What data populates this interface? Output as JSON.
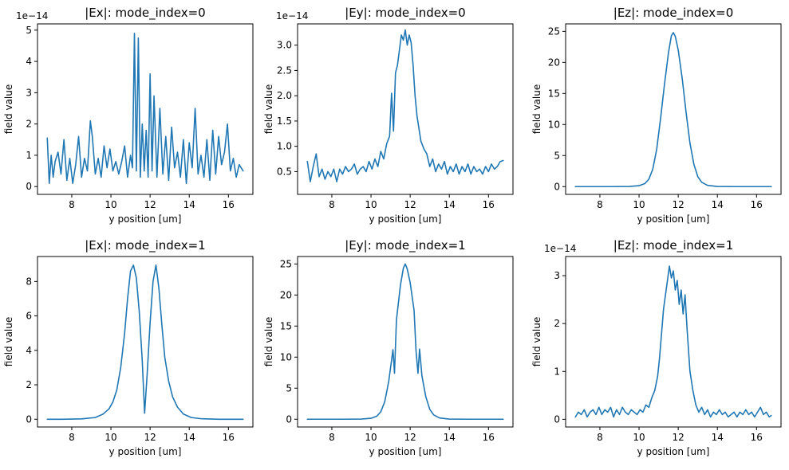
{
  "figure": {
    "series_color": "#1f77b4"
  },
  "chart_data": [
    {
      "type": "line",
      "title": "|Ex|: mode_index=0",
      "xlabel": "y position [um]",
      "ylabel": "field value",
      "offset_label": "1e−14",
      "xlim": [
        6.25,
        17.25
      ],
      "ylim": [
        -0.25,
        5.2
      ],
      "xticks": [
        8,
        10,
        12,
        14,
        16
      ],
      "xtick_labels": [
        "8",
        "10",
        "12",
        "14",
        "16"
      ],
      "yticks": [
        0,
        1,
        2,
        3,
        4,
        5
      ],
      "ytick_labels": [
        "0",
        "1",
        "2",
        "3",
        "4",
        "5"
      ],
      "x": [
        6.75,
        6.85,
        6.95,
        7.05,
        7.15,
        7.3,
        7.45,
        7.6,
        7.75,
        7.9,
        8.05,
        8.2,
        8.35,
        8.5,
        8.65,
        8.8,
        8.95,
        9.05,
        9.2,
        9.35,
        9.5,
        9.65,
        9.8,
        9.95,
        10.1,
        10.25,
        10.4,
        10.55,
        10.7,
        10.85,
        11.0,
        11.1,
        11.2,
        11.3,
        11.4,
        11.5,
        11.6,
        11.7,
        11.8,
        11.9,
        12.0,
        12.1,
        12.2,
        12.35,
        12.5,
        12.65,
        12.8,
        12.95,
        13.1,
        13.25,
        13.4,
        13.55,
        13.7,
        13.85,
        14.0,
        14.15,
        14.3,
        14.45,
        14.6,
        14.75,
        14.9,
        15.05,
        15.2,
        15.35,
        15.5,
        15.65,
        15.8,
        15.95,
        16.1,
        16.25,
        16.4,
        16.55,
        16.75
      ],
      "y": [
        1.55,
        0.1,
        1.0,
        0.3,
        0.8,
        1.1,
        0.4,
        1.5,
        0.2,
        0.9,
        0.1,
        0.7,
        1.6,
        0.3,
        0.9,
        0.5,
        2.1,
        1.6,
        0.4,
        0.9,
        0.3,
        1.3,
        0.6,
        1.2,
        0.5,
        0.8,
        0.4,
        0.8,
        1.3,
        0.3,
        1.0,
        0.6,
        4.9,
        0.5,
        4.75,
        0.3,
        2.0,
        0.5,
        1.8,
        0.3,
        3.6,
        0.5,
        2.9,
        0.3,
        2.5,
        0.4,
        1.6,
        0.2,
        1.9,
        0.6,
        1.1,
        0.3,
        1.5,
        0.1,
        1.4,
        0.6,
        2.5,
        0.4,
        1.0,
        0.3,
        1.5,
        0.2,
        1.8,
        0.4,
        1.6,
        0.7,
        1.1,
        2.0,
        0.5,
        0.9,
        0.3,
        0.7,
        0.5
      ]
    },
    {
      "type": "line",
      "title": "|Ey|: mode_index=0",
      "xlabel": "y position [um]",
      "ylabel": "field value",
      "offset_label": "1e−14",
      "xlim": [
        6.25,
        17.25
      ],
      "ylim": [
        0.05,
        3.42
      ],
      "xticks": [
        8,
        10,
        12,
        14,
        16
      ],
      "xtick_labels": [
        "8",
        "10",
        "12",
        "14",
        "16"
      ],
      "yticks": [
        0.5,
        1.0,
        1.5,
        2.0,
        2.5,
        3.0
      ],
      "ytick_labels": [
        "0.5",
        "1.0",
        "1.5",
        "2.0",
        "2.5",
        "3.0"
      ],
      "x": [
        6.75,
        6.9,
        7.05,
        7.2,
        7.35,
        7.5,
        7.65,
        7.8,
        7.95,
        8.1,
        8.25,
        8.4,
        8.55,
        8.7,
        8.85,
        9.0,
        9.15,
        9.3,
        9.45,
        9.6,
        9.75,
        9.9,
        10.05,
        10.2,
        10.35,
        10.5,
        10.65,
        10.8,
        10.95,
        11.05,
        11.15,
        11.25,
        11.35,
        11.45,
        11.55,
        11.65,
        11.75,
        11.85,
        11.95,
        12.05,
        12.15,
        12.25,
        12.35,
        12.45,
        12.55,
        12.7,
        12.85,
        13.0,
        13.15,
        13.3,
        13.45,
        13.6,
        13.75,
        13.9,
        14.05,
        14.2,
        14.35,
        14.5,
        14.65,
        14.8,
        14.95,
        15.1,
        15.25,
        15.4,
        15.55,
        15.7,
        15.85,
        16.0,
        16.15,
        16.3,
        16.45,
        16.6,
        16.75
      ],
      "y": [
        0.7,
        0.3,
        0.6,
        0.85,
        0.4,
        0.55,
        0.35,
        0.5,
        0.4,
        0.55,
        0.3,
        0.55,
        0.45,
        0.6,
        0.5,
        0.55,
        0.65,
        0.45,
        0.55,
        0.6,
        0.5,
        0.7,
        0.55,
        0.75,
        0.6,
        0.9,
        0.75,
        1.05,
        1.2,
        2.05,
        1.3,
        2.45,
        2.6,
        2.9,
        3.2,
        3.1,
        3.3,
        3.0,
        3.2,
        3.05,
        2.6,
        2.0,
        1.6,
        1.35,
        1.1,
        0.95,
        0.85,
        0.6,
        0.75,
        0.5,
        0.65,
        0.55,
        0.7,
        0.45,
        0.6,
        0.5,
        0.65,
        0.45,
        0.6,
        0.5,
        0.65,
        0.45,
        0.6,
        0.5,
        0.55,
        0.45,
        0.6,
        0.5,
        0.65,
        0.55,
        0.6,
        0.7,
        0.72
      ]
    },
    {
      "type": "line",
      "title": "|Ez|: mode_index=0",
      "xlabel": "y position [um]",
      "ylabel": "field value",
      "offset_label": "",
      "xlim": [
        6.25,
        17.25
      ],
      "ylim": [
        -1.25,
        26.2
      ],
      "xticks": [
        8,
        10,
        12,
        14,
        16
      ],
      "xtick_labels": [
        "8",
        "10",
        "12",
        "14",
        "16"
      ],
      "yticks": [
        0,
        5,
        10,
        15,
        20,
        25
      ],
      "ytick_labels": [
        "0",
        "5",
        "10",
        "15",
        "20",
        "25"
      ],
      "x": [
        6.75,
        7.5,
        8.5,
        9.5,
        10.0,
        10.3,
        10.5,
        10.7,
        10.9,
        11.1,
        11.3,
        11.5,
        11.65,
        11.75,
        11.85,
        12.0,
        12.2,
        12.4,
        12.6,
        12.8,
        13.0,
        13.2,
        13.5,
        14.0,
        15.0,
        16.0,
        16.75
      ],
      "y": [
        0,
        0,
        0,
        0.02,
        0.15,
        0.5,
        1.2,
        2.8,
        6.0,
        11.0,
        16.5,
        21.5,
        24.3,
        24.8,
        24.2,
        22.0,
        17.5,
        12.0,
        7.0,
        3.6,
        1.6,
        0.7,
        0.2,
        0.03,
        0,
        0,
        0
      ]
    },
    {
      "type": "line",
      "title": "|Ex|: mode_index=1",
      "xlabel": "y position [um]",
      "ylabel": "field value",
      "offset_label": "",
      "xlim": [
        6.25,
        17.25
      ],
      "ylim": [
        -0.45,
        9.45
      ],
      "xticks": [
        8,
        10,
        12,
        14,
        16
      ],
      "xtick_labels": [
        "8",
        "10",
        "12",
        "14",
        "16"
      ],
      "yticks": [
        0,
        2,
        4,
        6,
        8
      ],
      "ytick_labels": [
        "0",
        "2",
        "4",
        "6",
        "8"
      ],
      "x": [
        6.75,
        7.5,
        8.5,
        9.2,
        9.6,
        9.9,
        10.1,
        10.3,
        10.5,
        10.7,
        10.85,
        11.0,
        11.15,
        11.3,
        11.45,
        11.6,
        11.72,
        11.85,
        12.0,
        12.15,
        12.3,
        12.45,
        12.6,
        12.75,
        12.95,
        13.15,
        13.4,
        13.7,
        14.1,
        14.6,
        15.5,
        16.75
      ],
      "y": [
        0,
        0,
        0.02,
        0.1,
        0.3,
        0.6,
        1.0,
        1.7,
        3.0,
        5.0,
        7.0,
        8.6,
        8.95,
        8.2,
        6.2,
        3.4,
        0.35,
        2.6,
        5.6,
        8.0,
        8.95,
        7.6,
        5.5,
        3.6,
        2.2,
        1.3,
        0.7,
        0.3,
        0.1,
        0.03,
        0,
        0
      ]
    },
    {
      "type": "line",
      "title": "|Ey|: mode_index=1",
      "xlabel": "y position [um]",
      "ylabel": "field value",
      "offset_label": "",
      "xlim": [
        6.25,
        17.25
      ],
      "ylim": [
        -1.25,
        26.2
      ],
      "xticks": [
        8,
        10,
        12,
        14,
        16
      ],
      "xtick_labels": [
        "8",
        "10",
        "12",
        "14",
        "16"
      ],
      "yticks": [
        0,
        5,
        10,
        15,
        20,
        25
      ],
      "ytick_labels": [
        "0",
        "5",
        "10",
        "15",
        "20",
        "25"
      ],
      "x": [
        6.75,
        7.5,
        8.5,
        9.5,
        10.0,
        10.3,
        10.5,
        10.7,
        10.9,
        11.05,
        11.12,
        11.2,
        11.3,
        11.5,
        11.65,
        11.75,
        11.85,
        12.0,
        12.2,
        12.3,
        12.4,
        12.48,
        12.6,
        12.8,
        13.0,
        13.2,
        13.5,
        14.0,
        15.0,
        16.0,
        16.75
      ],
      "y": [
        0,
        0,
        0,
        0.02,
        0.15,
        0.5,
        1.2,
        2.8,
        6.0,
        9.5,
        11.2,
        7.4,
        16.0,
        21.5,
        24.3,
        25.0,
        24.2,
        22.0,
        17.5,
        11.0,
        7.4,
        11.3,
        7.0,
        3.6,
        1.6,
        0.7,
        0.2,
        0.03,
        0,
        0,
        0
      ]
    },
    {
      "type": "line",
      "title": "|Ez|: mode_index=1",
      "xlabel": "y position [um]",
      "ylabel": "field value",
      "offset_label": "1e−14",
      "xlim": [
        6.25,
        17.25
      ],
      "ylim": [
        -0.16,
        3.4
      ],
      "xticks": [
        8,
        10,
        12,
        14,
        16
      ],
      "xtick_labels": [
        "8",
        "10",
        "12",
        "14",
        "16"
      ],
      "yticks": [
        0,
        1,
        2,
        3
      ],
      "ytick_labels": [
        "0",
        "1",
        "2",
        "3"
      ],
      "x": [
        6.75,
        6.9,
        7.05,
        7.2,
        7.35,
        7.5,
        7.65,
        7.8,
        7.95,
        8.1,
        8.25,
        8.4,
        8.55,
        8.7,
        8.85,
        9.0,
        9.15,
        9.3,
        9.45,
        9.6,
        9.75,
        9.9,
        10.05,
        10.2,
        10.35,
        10.5,
        10.65,
        10.8,
        10.95,
        11.05,
        11.15,
        11.25,
        11.35,
        11.45,
        11.55,
        11.65,
        11.75,
        11.85,
        11.95,
        12.05,
        12.15,
        12.25,
        12.35,
        12.45,
        12.6,
        12.75,
        12.9,
        13.05,
        13.2,
        13.35,
        13.5,
        13.65,
        13.8,
        13.95,
        14.1,
        14.25,
        14.4,
        14.55,
        14.7,
        14.85,
        15.0,
        15.15,
        15.3,
        15.45,
        15.6,
        15.75,
        15.9,
        16.05,
        16.2,
        16.35,
        16.5,
        16.65,
        16.75
      ],
      "y": [
        0.05,
        0.15,
        0.1,
        0.2,
        0.05,
        0.15,
        0.2,
        0.1,
        0.25,
        0.1,
        0.2,
        0.15,
        0.25,
        0.05,
        0.2,
        0.1,
        0.25,
        0.15,
        0.1,
        0.2,
        0.15,
        0.1,
        0.2,
        0.15,
        0.3,
        0.25,
        0.45,
        0.6,
        0.9,
        1.3,
        1.8,
        2.3,
        2.6,
        2.9,
        3.2,
        2.95,
        3.1,
        2.7,
        2.9,
        2.4,
        2.7,
        2.2,
        2.6,
        1.9,
        1.0,
        0.6,
        0.3,
        0.15,
        0.25,
        0.1,
        0.2,
        0.05,
        0.15,
        0.1,
        0.2,
        0.1,
        0.15,
        0.05,
        0.1,
        0.15,
        0.05,
        0.15,
        0.1,
        0.2,
        0.1,
        0.15,
        0.05,
        0.15,
        0.25,
        0.1,
        0.15,
        0.05,
        0.08
      ]
    }
  ]
}
